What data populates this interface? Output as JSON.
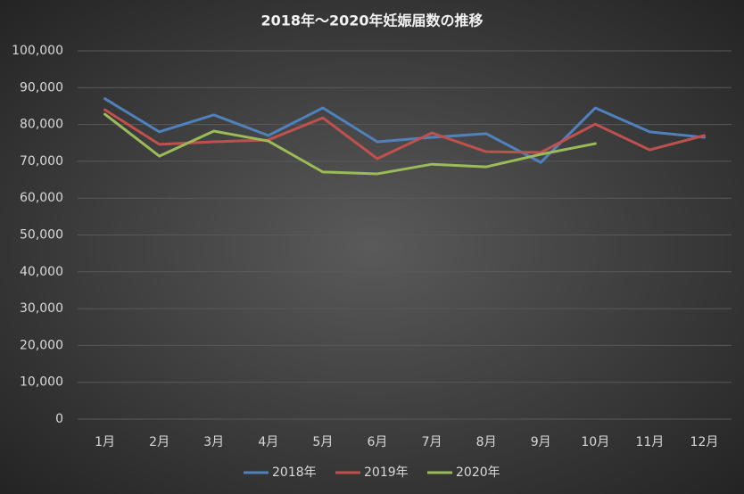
{
  "chart_data": {
    "type": "line",
    "title": "2018年～2020年妊娠届数の推移",
    "categories": [
      "1月",
      "2月",
      "3月",
      "4月",
      "5月",
      "6月",
      "7月",
      "8月",
      "9月",
      "10月",
      "11月",
      "12月"
    ],
    "series": [
      {
        "name": "2018年",
        "color": "#4f81bd",
        "values": [
          87000,
          78000,
          82600,
          77000,
          84500,
          75300,
          76500,
          77500,
          69700,
          84500,
          78000,
          76500
        ]
      },
      {
        "name": "2019年",
        "color": "#c0504d",
        "values": [
          84000,
          74600,
          75300,
          75800,
          81800,
          70700,
          77700,
          72600,
          72400,
          80100,
          73100,
          77000
        ]
      },
      {
        "name": "2020年",
        "color": "#9bbb59",
        "values": [
          82800,
          71400,
          78200,
          75500,
          67100,
          66600,
          69200,
          68500,
          71900,
          74800,
          null,
          null
        ]
      }
    ],
    "ylim": [
      0,
      100000
    ],
    "yticks": [
      0,
      {
        "value": 10000,
        "label": "10,000"
      },
      {
        "value": 20000,
        "label": "20,000"
      },
      {
        "value": 30000,
        "label": "30,000"
      },
      {
        "value": 40000,
        "label": "40,000"
      },
      {
        "value": 50000,
        "label": "50,000"
      },
      {
        "value": 60000,
        "label": "60,000"
      },
      {
        "value": 70000,
        "label": "70,000"
      },
      {
        "value": 80000,
        "label": "80,000"
      },
      {
        "value": 90000,
        "label": "90,000"
      },
      {
        "value": 100000,
        "label": "100,000"
      }
    ],
    "grid": true,
    "legend": "bottom"
  }
}
